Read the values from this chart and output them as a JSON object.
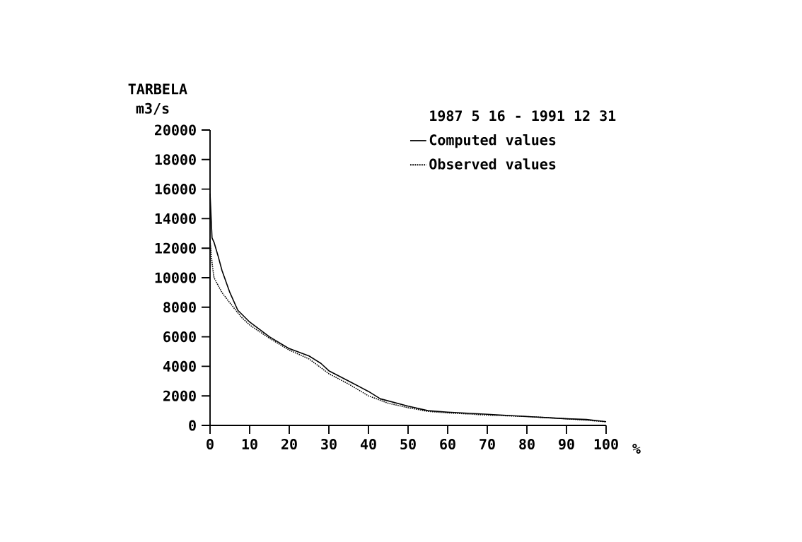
{
  "chart_data": {
    "type": "line",
    "title": "TARBELA",
    "ylabel": "m3/s",
    "xlabel": "%",
    "legend_title": "1987 5 16 - 1991 12 31",
    "legend": "top right",
    "grid": false,
    "xlim": [
      0,
      100
    ],
    "ylim": [
      0,
      20000
    ],
    "xticks": [
      0,
      10,
      20,
      30,
      40,
      50,
      60,
      70,
      80,
      90,
      100
    ],
    "yticks": [
      0,
      2000,
      4000,
      6000,
      8000,
      10000,
      12000,
      14000,
      16000,
      18000,
      20000
    ],
    "series": [
      {
        "name": "Computed values",
        "color": "#000000",
        "line_style": "solid",
        "x": [
          0,
          0.5,
          1,
          2,
          3,
          5,
          7,
          10,
          15,
          20,
          25,
          28,
          30,
          35,
          40,
          43,
          50,
          55,
          60,
          70,
          80,
          90,
          95,
          100
        ],
        "values": [
          15700,
          12700,
          12400,
          11500,
          10500,
          9000,
          7800,
          7000,
          6000,
          5200,
          4700,
          4200,
          3700,
          3000,
          2300,
          1800,
          1300,
          1000,
          900,
          750,
          600,
          450,
          400,
          250
        ]
      },
      {
        "name": "Observed values",
        "color": "#000000",
        "line_style": "dotted",
        "x": [
          0,
          0.5,
          1,
          3,
          5,
          8,
          10,
          15,
          20,
          25,
          30,
          35,
          40,
          45,
          50,
          55,
          60,
          70,
          80,
          90,
          100
        ],
        "values": [
          12600,
          11000,
          10000,
          9000,
          8300,
          7300,
          6800,
          5900,
          5100,
          4500,
          3500,
          2800,
          2000,
          1500,
          1200,
          950,
          850,
          700,
          600,
          450,
          250
        ]
      }
    ]
  }
}
